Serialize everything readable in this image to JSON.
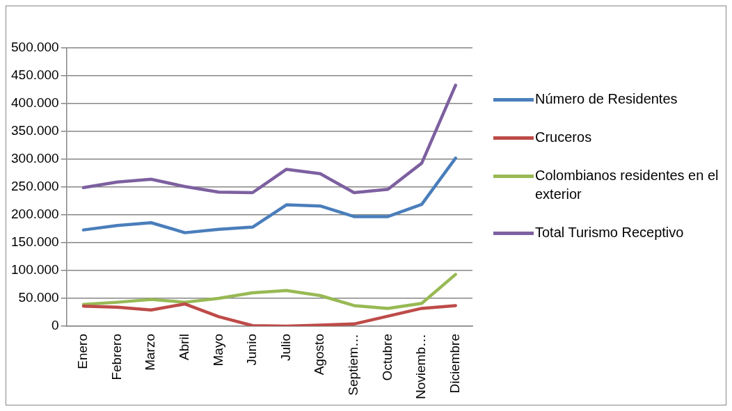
{
  "chart_data": {
    "type": "line",
    "categories": [
      "Enero",
      "Febrero",
      "Marzo",
      "Abril",
      "Mayo",
      "Junio",
      "Julio",
      "Agosto",
      "Septiem…",
      "Octubre",
      "Noviemb…",
      "Diciembre"
    ],
    "series": [
      {
        "name": "Número de Residentes",
        "color": "#4a7ebb",
        "values": [
          173000,
          181000,
          186000,
          168000,
          174000,
          178000,
          218000,
          216000,
          197000,
          197000,
          219000,
          302000
        ]
      },
      {
        "name": "Cruceros",
        "color": "#be4b48",
        "values": [
          36000,
          34000,
          29000,
          40000,
          17000,
          1000,
          0,
          2000,
          4000,
          18000,
          32000,
          37000
        ]
      },
      {
        "name": "Colombianos residentes en el exterior",
        "color": "#98b954",
        "values": [
          39000,
          43000,
          48000,
          43000,
          50000,
          60000,
          64000,
          55000,
          37000,
          32000,
          41000,
          93000
        ]
      },
      {
        "name": "Total Turismo Receptivo",
        "color": "#7d60a0",
        "values": [
          249000,
          259000,
          264000,
          251000,
          241000,
          240000,
          282000,
          274000,
          240000,
          246000,
          293000,
          433000
        ]
      }
    ],
    "ylim": [
      0,
      500000
    ],
    "yticks": [
      {
        "value": 0,
        "label": "0"
      },
      {
        "value": 50000,
        "label": "50.000"
      },
      {
        "value": 100000,
        "label": "100.000"
      },
      {
        "value": 150000,
        "label": "150.000"
      },
      {
        "value": 200000,
        "label": "200.000"
      },
      {
        "value": 250000,
        "label": "250.000"
      },
      {
        "value": 300000,
        "label": "300.000"
      },
      {
        "value": 350000,
        "label": "350.000"
      },
      {
        "value": 400000,
        "label": "400.000"
      },
      {
        "value": 450000,
        "label": "450.000"
      },
      {
        "value": 500000,
        "label": "500.000"
      }
    ],
    "grid": "y",
    "legend": "right",
    "marker": "none",
    "line_style": "solid"
  }
}
